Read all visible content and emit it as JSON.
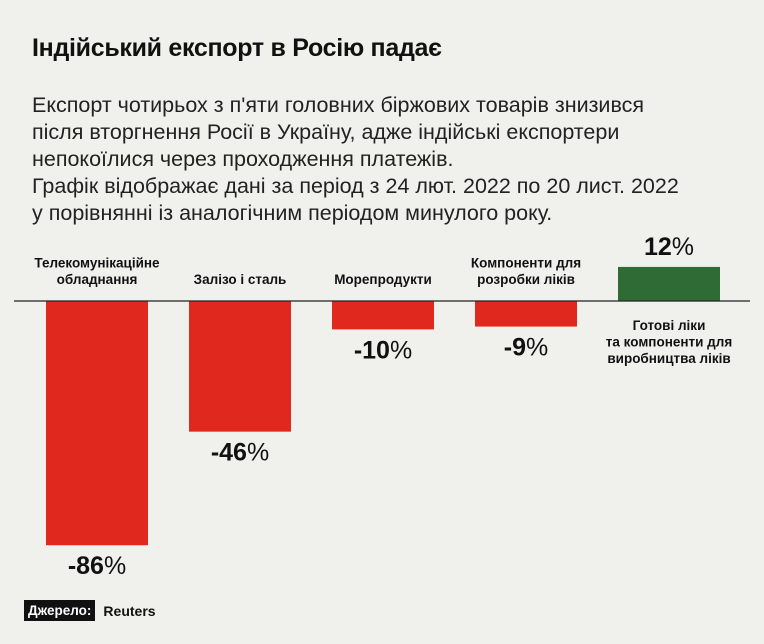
{
  "title": "Індійський експорт в Росію падає",
  "subtitle_lines": [
    "Експорт чотирьох з п'яти головних біржових товарів знизився",
    "після вторгнення Росії в Україну, адже індійські експортери",
    "непокоїлися через проходження платежів.",
    "Графік відображає дані за період з 24 лют. 2022 по 20 лист. 2022",
    "у порівнянні із аналогічним періодом минулого року."
  ],
  "source": {
    "label": "Джерело:",
    "value": "Reuters"
  },
  "colors": {
    "negative": "#e0281f",
    "positive": "#2f6b35",
    "axis": "#222222",
    "background": "#f0f0ed"
  },
  "chart_data": {
    "type": "bar",
    "title": "Індійський експорт в Росію падає",
    "categories": [
      [
        "Телекомунікаційне",
        "обладнання"
      ],
      [
        "Залізо і сталь"
      ],
      [
        "Морепродукти"
      ],
      [
        "Компоненти для",
        "розробки ліків"
      ],
      [
        "Готові ліки",
        "та компоненти для",
        "виробництва ліків"
      ]
    ],
    "values": [
      -86,
      -46,
      -10,
      -9,
      12
    ],
    "value_labels": [
      "-86",
      "-46",
      "-10",
      "-9",
      "12"
    ],
    "value_suffix": "%",
    "xlabel": "",
    "ylabel": ""
  }
}
